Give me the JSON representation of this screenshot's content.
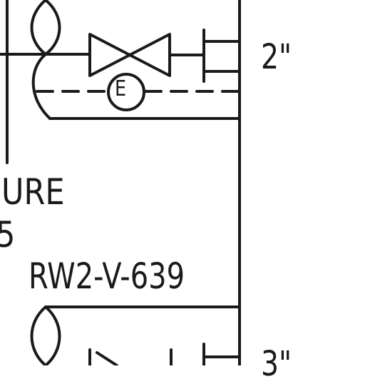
{
  "diagram": {
    "line_color": "#1a1a1a",
    "background": "#ffffff",
    "labels": {
      "size_top": "2\"",
      "size_bottom": "3\"",
      "fragment_ure": "URE",
      "fragment_5": "5",
      "valve_tag": "RW2-V-639",
      "instrument_letter": "E"
    },
    "symbols": [
      "gate-valve",
      "blind-flange",
      "instrument-bubble",
      "pipe-break",
      "angle-valve"
    ]
  }
}
